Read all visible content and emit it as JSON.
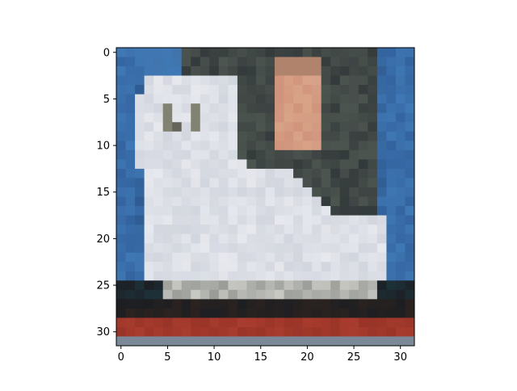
{
  "chart_data": {
    "type": "heatmap",
    "title": "",
    "xlabel": "",
    "ylabel": "",
    "xlim": [
      -0.5,
      31.5
    ],
    "ylim": [
      31.5,
      -0.5
    ],
    "grid": false,
    "legend": "none",
    "x_ticks": [
      0,
      5,
      10,
      15,
      20,
      25,
      30
    ],
    "y_ticks": [
      0,
      5,
      10,
      15,
      20,
      25,
      30
    ],
    "x_tick_labels": [
      "0",
      "5",
      "10",
      "15",
      "20",
      "25",
      "30"
    ],
    "y_tick_labels": [
      "0",
      "5",
      "10",
      "15",
      "20",
      "25",
      "30"
    ],
    "image": {
      "rows": 32,
      "cols": 32,
      "description_colors": {
        "background_blue": "#3f78b4",
        "dark_gray_wall": "#4d5550",
        "white_dog": "#e6e8ee",
        "skin": "#d8a488",
        "dark_floor": "#1c1e22",
        "red_stripe": "#a83c2e",
        "gray_bottom": "#7b8898"
      }
    }
  }
}
